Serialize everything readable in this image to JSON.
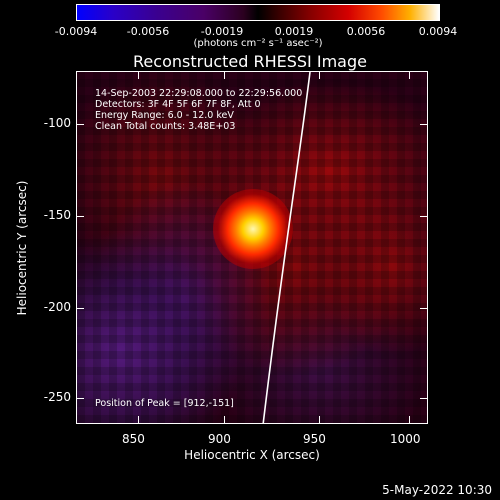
{
  "colorbar": {
    "tick_labels": [
      "-0.0094",
      "-0.0056",
      "-0.0019",
      "0.0019",
      "0.0056",
      "0.0094"
    ],
    "units_label": "(photons cm⁻² s⁻¹ asec⁻²)"
  },
  "plot": {
    "title": "Reconstructed RHESSI Image",
    "annotations": {
      "time_range": "14-Sep-2003 22:29:08.000 to 22:29:56.000",
      "detectors": "Detectors: 3F 4F 5F 6F 7F 8F, Att 0",
      "energy_range": "Energy Range: 6.0 - 12.0 keV",
      "clean_counts": "Clean    Total counts: 3.48E+03",
      "peak_position": "Position of Peak = [912,-151]"
    },
    "x_axis": {
      "label": "Heliocentric X (arcsec)",
      "ticks": [
        "850",
        "900",
        "950",
        "1000"
      ]
    },
    "y_axis": {
      "label": "Heliocentric Y (arcsec)",
      "ticks": [
        "-100",
        "-150",
        "-200",
        "-250"
      ]
    }
  },
  "footer": {
    "timestamp": "5-May-2022 10:30"
  }
}
